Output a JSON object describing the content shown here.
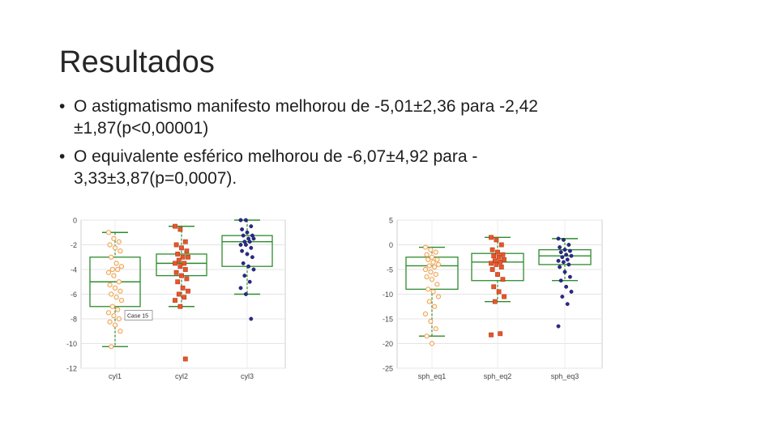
{
  "title": "Resultados",
  "bullets": [
    {
      "lines": [
        "O astigmatismo manifesto melhorou de -5,01±2,36 para -2,42",
        "±1,87(p<0,00001)"
      ]
    },
    {
      "lines": [
        "O equivalente esférico melhorou de -6,07±4,92 para -",
        "3,33±3,87(p=0,0007)."
      ]
    }
  ],
  "chart_data": [
    {
      "type": "box",
      "ylim": [
        -12,
        0
      ],
      "yticks": [
        0,
        -2,
        -4,
        -6,
        -8,
        -10,
        -12
      ],
      "categories": [
        "cyl1",
        "cyl2",
        "cyl3"
      ],
      "annotation": "Case 15",
      "boxes": [
        {
          "name": "cyl1",
          "q1": -7.0,
          "median": -5.0,
          "q3": -3.0,
          "whisker_low": -10.25,
          "whisker_high": -1.0,
          "color": "#f0a050",
          "marker": "circle",
          "points": [
            -1.0,
            -1.5,
            -1.75,
            -2.0,
            -2.25,
            -2.5,
            -3.0,
            -3.5,
            -3.75,
            -4.0,
            -4.0,
            -4.25,
            -4.5,
            -5.0,
            -5.25,
            -5.5,
            -5.75,
            -6.0,
            -6.25,
            -6.5,
            -7.0,
            -7.25,
            -7.5,
            -7.75,
            -8.0,
            -8.25,
            -8.5,
            -9.0,
            -10.25
          ]
        },
        {
          "name": "cyl2",
          "q1": -4.5,
          "median": -3.5,
          "q3": -2.75,
          "whisker_low": -7.0,
          "whisker_high": -0.5,
          "color": "#e8562a",
          "marker": "square",
          "points": [
            -0.5,
            -0.75,
            -1.75,
            -2.0,
            -2.25,
            -2.5,
            -2.75,
            -3.0,
            -3.0,
            -3.25,
            -3.5,
            -3.5,
            -3.75,
            -4.0,
            -4.25,
            -4.5,
            -4.75,
            -5.0,
            -5.5,
            -5.75,
            -6.0,
            -6.25,
            -6.5,
            -7.0,
            -11.25
          ]
        },
        {
          "name": "cyl3",
          "q1": -3.75,
          "median": -1.75,
          "q3": -1.25,
          "whisker_low": -6.0,
          "whisker_high": 0.0,
          "color": "#2a2a8a",
          "marker": "circle",
          "points": [
            0.0,
            0.0,
            -0.5,
            -0.75,
            -1.0,
            -1.25,
            -1.25,
            -1.5,
            -1.5,
            -1.75,
            -1.75,
            -2.0,
            -2.0,
            -2.25,
            -2.5,
            -2.75,
            -3.0,
            -3.5,
            -3.75,
            -4.0,
            -4.5,
            -5.0,
            -5.5,
            -6.0,
            -8.0
          ]
        }
      ]
    },
    {
      "type": "box",
      "ylim": [
        -25,
        5
      ],
      "yticks": [
        5,
        0,
        -5,
        -10,
        -15,
        -20,
        -25
      ],
      "categories": [
        "sph_eq1",
        "sph_eq2",
        "sph_eq3"
      ],
      "boxes": [
        {
          "name": "sph_eq1",
          "q1": -9.0,
          "median": -4.25,
          "q3": -2.5,
          "whisker_low": -18.5,
          "whisker_high": -0.5,
          "color": "#f0a050",
          "marker": "circle",
          "points": [
            -0.5,
            -1.0,
            -1.5,
            -2.0,
            -2.5,
            -3.0,
            -3.0,
            -3.5,
            -4.0,
            -4.25,
            -4.5,
            -5.0,
            -5.5,
            -6.0,
            -6.5,
            -7.0,
            -8.0,
            -9.0,
            -9.5,
            -10.5,
            -11.5,
            -12.5,
            -14.0,
            -15.5,
            -17.0,
            -18.5,
            -20.0
          ]
        },
        {
          "name": "sph_eq2",
          "q1": -7.25,
          "median": -3.5,
          "q3": -1.75,
          "whisker_low": -11.5,
          "whisker_high": 1.5,
          "color": "#e8562a",
          "marker": "square",
          "points": [
            1.5,
            1.0,
            0.0,
            -1.0,
            -1.5,
            -2.0,
            -2.25,
            -2.5,
            -3.0,
            -3.25,
            -3.5,
            -3.75,
            -4.0,
            -4.5,
            -5.0,
            -6.0,
            -7.0,
            -8.5,
            -9.5,
            -10.5,
            -11.5,
            -18.0,
            -18.25
          ]
        },
        {
          "name": "sph_eq3",
          "q1": -4.0,
          "median": -2.25,
          "q3": -1.0,
          "whisker_low": -7.25,
          "whisker_high": 1.25,
          "color": "#2a2a8a",
          "marker": "circle",
          "points": [
            1.25,
            1.0,
            0.0,
            -0.5,
            -1.0,
            -1.25,
            -1.5,
            -2.0,
            -2.25,
            -2.5,
            -3.0,
            -3.25,
            -3.5,
            -4.0,
            -4.5,
            -5.5,
            -6.5,
            -7.25,
            -8.5,
            -9.5,
            -10.5,
            -12.0,
            -16.5
          ]
        }
      ]
    }
  ]
}
